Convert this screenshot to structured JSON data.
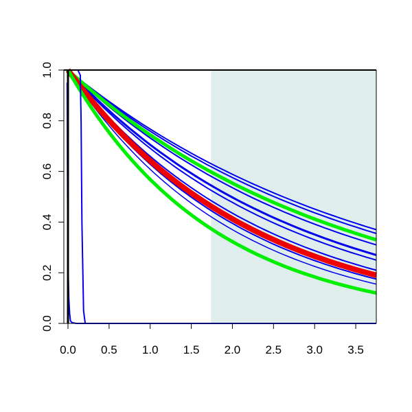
{
  "chart_data": {
    "type": "line",
    "title": "",
    "xlabel": "",
    "ylabel": "",
    "xlim": [
      -0.05,
      3.75
    ],
    "ylim": [
      0.0,
      1.0
    ],
    "x_ticks": [
      "0.0",
      "0.5",
      "1.0",
      "1.5",
      "2.0",
      "2.5",
      "3.0",
      "3.5"
    ],
    "y_ticks": [
      "0.0",
      "0.2",
      "0.4",
      "0.6",
      "0.8",
      "1.0"
    ],
    "grid": false,
    "legend": "none",
    "shaded_region": {
      "x_start": 1.74,
      "x_end": 3.75,
      "color": "#e0eded"
    },
    "colors": {
      "blue": "#0000ee",
      "green": "#00ee00",
      "red": "#ee0000",
      "axis": "#000000"
    },
    "series": [
      {
        "color": "#0000ee",
        "width": 2,
        "x": [
          0,
          3.75
        ],
        "y": [
          1.0,
          0.37
        ]
      },
      {
        "color": "#0000ee",
        "width": 2,
        "x": [
          0,
          3.75
        ],
        "y": [
          1.0,
          0.355
        ]
      },
      {
        "color": "#0000ee",
        "width": 2,
        "x": [
          0,
          3.75
        ],
        "y": [
          1.0,
          0.31
        ]
      },
      {
        "color": "#0000ee",
        "width": 3,
        "x": [
          0,
          3.75
        ],
        "y": [
          1.0,
          0.27
        ]
      },
      {
        "color": "#0000ee",
        "width": 2,
        "x": [
          0,
          3.75
        ],
        "y": [
          1.0,
          0.25
        ]
      },
      {
        "color": "#0000ee",
        "width": 2,
        "x": [
          0,
          3.75
        ],
        "y": [
          1.0,
          0.21
        ]
      },
      {
        "color": "#0000ee",
        "width": 2,
        "x": [
          0,
          3.75
        ],
        "y": [
          1.0,
          0.175
        ]
      },
      {
        "color": "#0000ee",
        "width": 1.5,
        "x": [
          0,
          3.75
        ],
        "y": [
          1.0,
          0.155
        ]
      },
      {
        "color": "#00ee00",
        "width": 5,
        "x": [
          0,
          3.75
        ],
        "y": [
          1.0,
          0.33
        ]
      },
      {
        "color": "#ee0000",
        "width": 8,
        "x": [
          0,
          3.75
        ],
        "y": [
          1.0,
          0.19
        ]
      },
      {
        "color": "#00ee00",
        "width": 5,
        "x": [
          0,
          3.75
        ],
        "y": [
          1.0,
          0.12
        ]
      },
      {
        "color": "#0000ee",
        "width": 2,
        "x": [
          -0.01,
          -0.005,
          0.0,
          0.01,
          0.02,
          0.03,
          0.05,
          0.1,
          3.75
        ],
        "y": [
          0.95,
          0.5,
          0.25,
          0.1,
          0.04,
          0.01,
          0.003,
          0.0,
          0.0
        ]
      },
      {
        "color": "#0000ee",
        "width": 2,
        "x": [
          0,
          0.12,
          0.15,
          0.16,
          0.17,
          0.19,
          0.21,
          3.75
        ],
        "y": [
          1.0,
          1.0,
          0.98,
          0.8,
          0.4,
          0.05,
          0.0,
          0.0
        ]
      }
    ]
  }
}
